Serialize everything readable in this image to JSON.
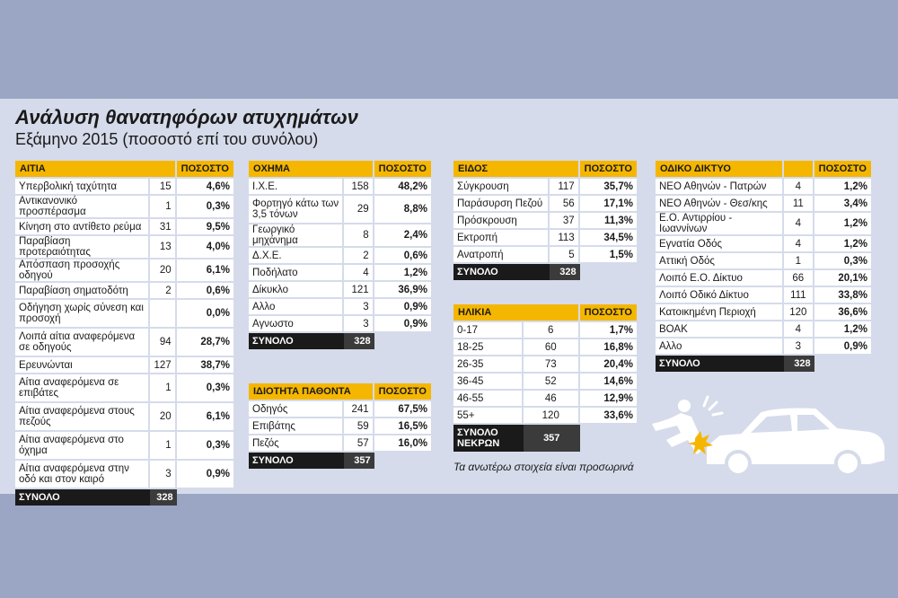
{
  "header": {
    "title": "Ανάλυση θανατηφόρων ατυχημάτων",
    "subtitle": "Εξάμηνο 2015 (ποσοστό επί του συνόλου)"
  },
  "aitia": {
    "head": "ΑΙΤΙΑ",
    "pct_head": "ΠΟΣΟΣΤΟ",
    "rows": [
      {
        "name": "Υπερβολική ταχύτητα",
        "count": "15",
        "pct": "4,6%"
      },
      {
        "name": "Αντικανονικό προσπέρασμα",
        "count": "1",
        "pct": "0,3%"
      },
      {
        "name": "Κίνηση στο αντίθετο ρεύμα",
        "count": "31",
        "pct": "9,5%"
      },
      {
        "name": "Παραβίαση προτεραιότητας",
        "count": "13",
        "pct": "4,0%"
      },
      {
        "name": "Απόσπαση προσοχής οδηγού",
        "count": "20",
        "pct": "6,1%"
      },
      {
        "name": "Παραβίαση σηματοδότη",
        "count": "2",
        "pct": "0,6%"
      },
      {
        "name": "Οδήγηση χωρίς σύνεση και προσοχή",
        "count": "",
        "pct": "0,0%"
      },
      {
        "name": "Λοιπά αίτια αναφερόμενα σε οδηγούς",
        "count": "94",
        "pct": "28,7%"
      },
      {
        "name": "Ερευνώνται",
        "count": "127",
        "pct": "38,7%"
      },
      {
        "name": "Αίτια αναφερόμενα σε επιβάτες",
        "count": "1",
        "pct": "0,3%"
      },
      {
        "name": "Αίτια αναφερόμενα στους πεζούς",
        "count": "20",
        "pct": "6,1%"
      },
      {
        "name": "Αίτια αναφερόμενα στο όχημα",
        "count": "1",
        "pct": "0,3%"
      },
      {
        "name": "Αίτια αναφερόμενα στην οδό και στον καιρό",
        "count": "3",
        "pct": "0,9%"
      }
    ],
    "total_label": "ΣΥΝΟΛΟ",
    "total": "328"
  },
  "oxhma": {
    "head": "ΟΧΗΜΑ",
    "pct_head": "ΠΟΣΟΣΤΟ",
    "rows": [
      {
        "name": "Ι.Χ.Ε.",
        "count": "158",
        "pct": "48,2%"
      },
      {
        "name": "Φορτηγό κάτω των 3,5 τόνων",
        "count": "29",
        "pct": "8,8%"
      },
      {
        "name": "Γεωργικό μηχάνημα",
        "count": "8",
        "pct": "2,4%"
      },
      {
        "name": "Δ.Χ.Ε.",
        "count": "2",
        "pct": "0,6%"
      },
      {
        "name": "Ποδήλατο",
        "count": "4",
        "pct": "1,2%"
      },
      {
        "name": "Δίκυκλο",
        "count": "121",
        "pct": "36,9%"
      },
      {
        "name": "Αλλο",
        "count": "3",
        "pct": "0,9%"
      },
      {
        "name": "Αγνωστο",
        "count": "3",
        "pct": "0,9%"
      }
    ],
    "total_label": "ΣΥΝΟΛΟ",
    "total": "328"
  },
  "idiotita": {
    "head": "ΙΔΙΟΤΗΤΑ ΠΑΘΟΝΤΑ",
    "pct_head": "ΠΟΣΟΣΤΟ",
    "rows": [
      {
        "name": "Οδηγός",
        "count": "241",
        "pct": "67,5%"
      },
      {
        "name": "Επιβάτης",
        "count": "59",
        "pct": "16,5%"
      },
      {
        "name": "Πεζός",
        "count": "57",
        "pct": "16,0%"
      }
    ],
    "total_label": "ΣΥΝΟΛΟ",
    "total": "357"
  },
  "eidos": {
    "head": "ΕΙΔΟΣ",
    "pct_head": "ΠΟΣΟΣΤΟ",
    "rows": [
      {
        "name": "Σύγκρουση",
        "count": "117",
        "pct": "35,7%"
      },
      {
        "name": "Παράσυρση Πεζού",
        "count": "56",
        "pct": "17,1%"
      },
      {
        "name": "Πρόσκρουση",
        "count": "37",
        "pct": "11,3%"
      },
      {
        "name": "Εκτροπή",
        "count": "113",
        "pct": "34,5%"
      },
      {
        "name": "Ανατροπή",
        "count": "5",
        "pct": "1,5%"
      }
    ],
    "total_label": "ΣΥΝΟΛΟ",
    "total": "328"
  },
  "ilikia": {
    "head": "ΗΛΙΚΙΑ",
    "pct_head": "ΠΟΣΟΣΤΟ",
    "rows": [
      {
        "name": "0-17",
        "count": "6",
        "pct": "1,7%"
      },
      {
        "name": "18-25",
        "count": "60",
        "pct": "16,8%"
      },
      {
        "name": "26-35",
        "count": "73",
        "pct": "20,4%"
      },
      {
        "name": "36-45",
        "count": "52",
        "pct": "14,6%"
      },
      {
        "name": "46-55",
        "count": "46",
        "pct": "12,9%"
      },
      {
        "name": "55+",
        "count": "120",
        "pct": "33,6%"
      }
    ],
    "total_label_1": "ΣΥΝΟΛΟ",
    "total_label_2": "ΝΕΚΡΩΝ",
    "total": "357"
  },
  "diktyo": {
    "head": "ΟΔΙΚΟ ΔΙΚΤΥΟ",
    "pct_head": "ΠΟΣΟΣΤΟ",
    "rows": [
      {
        "name": "ΝΕΟ Αθηνών - Πατρών",
        "count": "4",
        "pct": "1,2%"
      },
      {
        "name": "ΝΕΟ Αθηνών - Θεσ/κης",
        "count": "11",
        "pct": "3,4%"
      },
      {
        "name": "Ε.Ο. Αντιρρίου - Ιωαννίνων",
        "count": "4",
        "pct": "1,2%"
      },
      {
        "name": "Εγνατία Οδός",
        "count": "4",
        "pct": "1,2%"
      },
      {
        "name": "Αττική Οδός",
        "count": "1",
        "pct": "0,3%"
      },
      {
        "name": "Λοιπό Ε.Ο. Δίκτυο",
        "count": "66",
        "pct": "20,1%"
      },
      {
        "name": "Λοιπό Οδικό Δίκτυο",
        "count": "111",
        "pct": "33,8%"
      },
      {
        "name": "Κατοικημένη Περιοχή",
        "count": "120",
        "pct": "36,6%"
      },
      {
        "name": "ΒΟΑΚ",
        "count": "4",
        "pct": "1,2%"
      },
      {
        "name": "Αλλο",
        "count": "3",
        "pct": "0,9%"
      }
    ],
    "total_label": "ΣΥΝΟΛΟ",
    "total": "328"
  },
  "note": "Τα ανωτέρω στοιχεία είναι προσωρινά"
}
